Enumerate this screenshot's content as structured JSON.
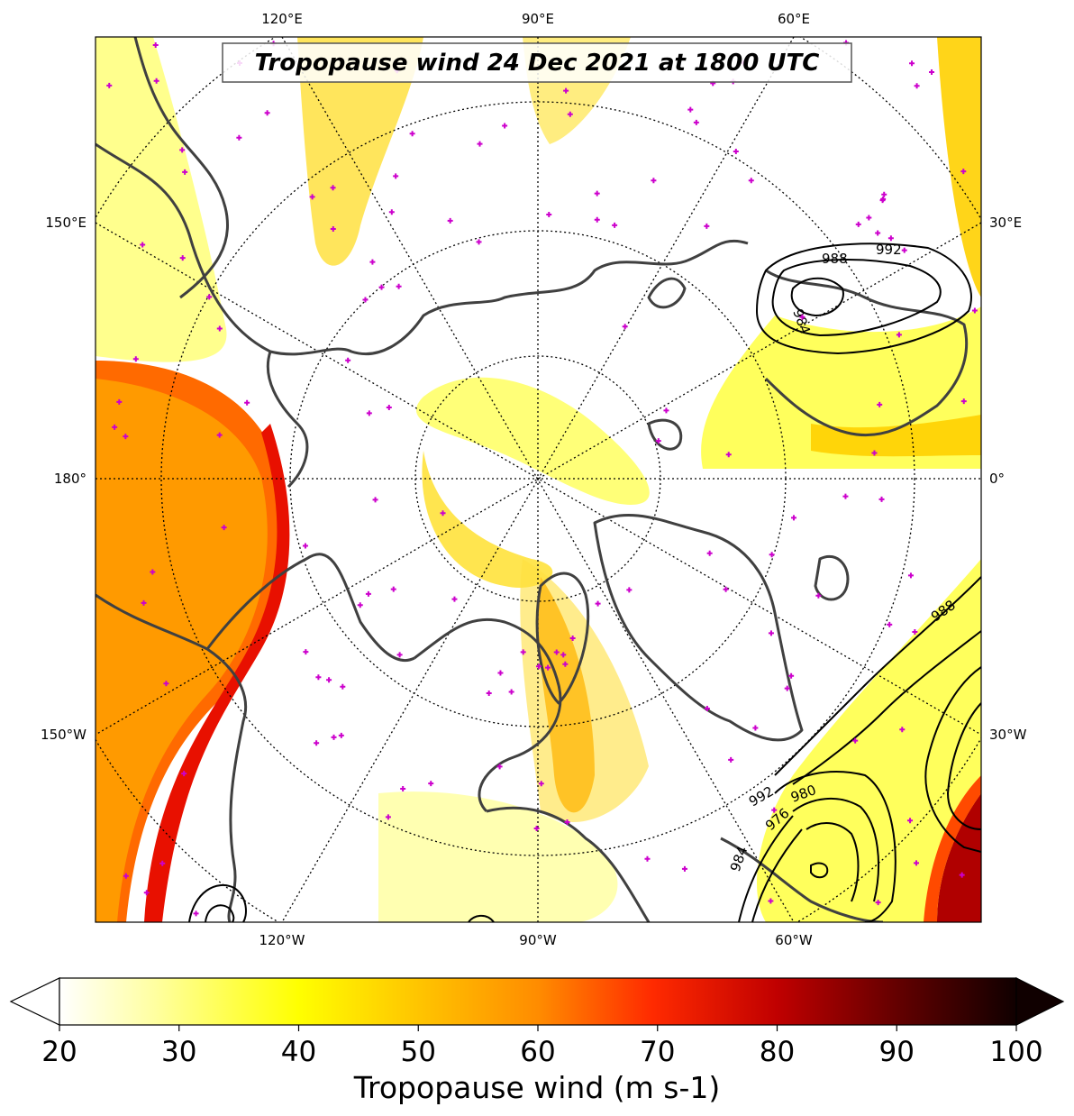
{
  "map": {
    "title": "Tropopause wind 24 Dec 2021 at 1800 UTC",
    "projection": "north-polar-stereographic",
    "top_lon_labels": [
      "120°E",
      "90°E",
      "60°E"
    ],
    "bottom_lon_labels": [
      "120°W",
      "90°W",
      "60°W"
    ],
    "left_lon_labels": [
      "150°E",
      "180°",
      "150°W"
    ],
    "right_lon_labels": [
      "30°E",
      "0°",
      "30°W"
    ],
    "pressure_contour_labels": [
      "992",
      "988",
      "984",
      "988",
      "992",
      "980",
      "976",
      "984"
    ],
    "colors": {
      "land_outline": "#404040",
      "marker": "#cc00cc",
      "graticule": "#000000",
      "contour": "#000000"
    }
  },
  "colorbar": {
    "label": "Tropopause wind (m s-1)",
    "ticks": [
      "20",
      "30",
      "40",
      "50",
      "60",
      "70",
      "80",
      "90",
      "100"
    ],
    "min": 20,
    "max": 100,
    "extend": "both",
    "colormap": "hot_r",
    "stops": [
      "#ffffff",
      "#ffff80",
      "#ffff00",
      "#ffd000",
      "#ff8c00",
      "#ff2a00",
      "#e00000",
      "#a00000",
      "#500000",
      "#000000"
    ]
  }
}
